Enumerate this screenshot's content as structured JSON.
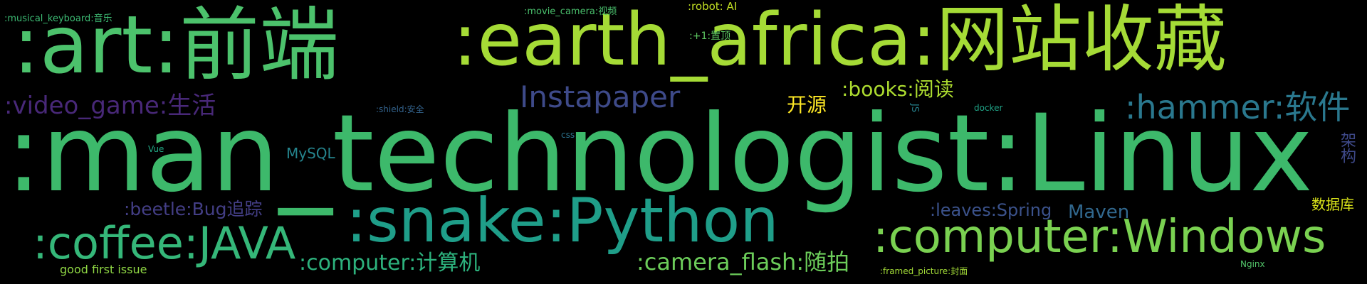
{
  "words": [
    {
      "id": "man-technologist",
      "text": ":man_technologist:Linux",
      "color": "#3db96b"
    },
    {
      "id": "art",
      "text": ":art:前端",
      "color": "#4cc26c"
    },
    {
      "id": "earth-africa",
      "text": ":earth_africa:网站收藏",
      "color": "#a5db36"
    },
    {
      "id": "snake-python",
      "text": ":snake:Python",
      "color": "#1f9e89"
    },
    {
      "id": "computer-windows",
      "text": ":computer:Windows",
      "color": "#7ad151"
    },
    {
      "id": "coffee-java",
      "text": ":coffee:JAVA",
      "color": "#35b779"
    },
    {
      "id": "hammer",
      "text": ":hammer:软件",
      "color": "#2a788e"
    },
    {
      "id": "instapaper",
      "text": "Instapaper",
      "color": "#3e4a89"
    },
    {
      "id": "video-game",
      "text": ":video_game:生活",
      "color": "#482878"
    },
    {
      "id": "camera-flash",
      "text": ":camera_flash:随拍",
      "color": "#6ccd5a"
    },
    {
      "id": "computer-cs",
      "text": ":computer:计算机",
      "color": "#2db27d"
    },
    {
      "id": "books",
      "text": ":books:阅读",
      "color": "#addc30"
    },
    {
      "id": "beetle",
      "text": ":beetle:Bug追踪",
      "color": "#433e85"
    },
    {
      "id": "kaiyuan",
      "text": "开源",
      "color": "#fde725"
    },
    {
      "id": "leaves-spring",
      "text": ":leaves:Spring",
      "color": "#3b528b"
    },
    {
      "id": "maven",
      "text": "Maven",
      "color": "#31688e"
    },
    {
      "id": "mysql",
      "text": "MySQL",
      "color": "#25858e"
    },
    {
      "id": "jiagou",
      "text": "架构",
      "color": "#3e4989",
      "vertical": true
    },
    {
      "id": "shujuku",
      "text": "数据库",
      "color": "#d8e219"
    },
    {
      "id": "good-first-issue",
      "text": "good first issue",
      "color": "#8fd744"
    },
    {
      "id": "musical-keyboard",
      "text": ":musical_keyboard:音乐",
      "color": "#3dbc74"
    },
    {
      "id": "movie-camera",
      "text": ":movie_camera:视频",
      "color": "#4ac16d"
    },
    {
      "id": "robot",
      "text": ":robot: AI",
      "color": "#c2df23"
    },
    {
      "id": "plus-one",
      "text": ":+1:置顶",
      "color": "#5ec962"
    },
    {
      "id": "shield",
      "text": ":shield:安全",
      "color": "#33638d"
    },
    {
      "id": "js",
      "text": "JS",
      "color": "#26828e",
      "vertical": true
    },
    {
      "id": "docker",
      "text": "docker",
      "color": "#20a386"
    },
    {
      "id": "css",
      "text": "css",
      "color": "#2c738e"
    },
    {
      "id": "vue",
      "text": "Vue",
      "color": "#22a884"
    },
    {
      "id": "framed-picture",
      "text": ":framed_picture:封面",
      "color": "#a2da37"
    },
    {
      "id": "nginx",
      "text": "Nginx",
      "color": "#52c569"
    }
  ]
}
